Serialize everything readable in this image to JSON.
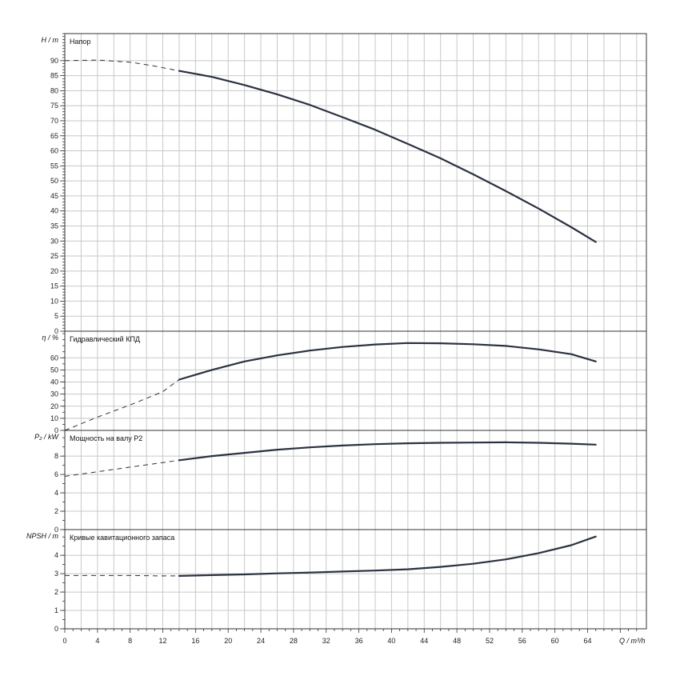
{
  "chart_data": {
    "type": "line",
    "x_axis": {
      "label": "Q / m³/h",
      "min": 0,
      "max": 71.2,
      "ticks": [
        0,
        4,
        8,
        12,
        16,
        20,
        24,
        28,
        32,
        36,
        40,
        44,
        48,
        52,
        56,
        60,
        64
      ],
      "tick_labels": [
        "0",
        "4",
        "8",
        "12",
        "16",
        "20",
        "24",
        "28",
        "32",
        "36",
        "40",
        "44",
        "48",
        "52",
        "56",
        "60",
        "64"
      ]
    },
    "grid": true,
    "panels": [
      {
        "title": "Напор",
        "y_label": "H / m",
        "y_min": 0,
        "y_max": 99,
        "ticks": [
          0,
          5,
          10,
          15,
          20,
          25,
          30,
          35,
          40,
          45,
          50,
          55,
          60,
          65,
          70,
          75,
          80,
          85,
          90
        ],
        "tick_labels": [
          "0",
          "5",
          "10",
          "15",
          "20",
          "25",
          "30",
          "35",
          "40",
          "45",
          "50",
          "55",
          "60",
          "65",
          "70",
          "75",
          "80",
          "85",
          "90"
        ],
        "minor_step": 1,
        "dashed_points": [
          [
            0,
            90
          ],
          [
            4,
            90.2
          ],
          [
            8,
            89.5
          ],
          [
            11,
            88.2
          ],
          [
            14,
            86.6
          ]
        ],
        "solid_points": [
          [
            14,
            86.6
          ],
          [
            18,
            84.6
          ],
          [
            22,
            81.9
          ],
          [
            26,
            78.8
          ],
          [
            30,
            75.3
          ],
          [
            34,
            71.2
          ],
          [
            38,
            67.0
          ],
          [
            42,
            62.3
          ],
          [
            46,
            57.5
          ],
          [
            50,
            52.2
          ],
          [
            54,
            46.6
          ],
          [
            58,
            40.8
          ],
          [
            62,
            34.6
          ],
          [
            65,
            29.7
          ]
        ]
      },
      {
        "title": "Гидравлический КПД",
        "y_label": "η / %",
        "y_min": 0,
        "y_max": 82,
        "ticks": [
          0,
          10,
          20,
          30,
          40,
          50,
          60
        ],
        "tick_labels": [
          "0",
          "10",
          "20",
          "30",
          "40",
          "50",
          "60"
        ],
        "minor_step": 5,
        "dashed_points": [
          [
            0,
            0
          ],
          [
            4,
            11
          ],
          [
            8,
            21
          ],
          [
            12,
            32
          ],
          [
            14,
            42
          ]
        ],
        "solid_points": [
          [
            14,
            42
          ],
          [
            18,
            50
          ],
          [
            22,
            57
          ],
          [
            26,
            62
          ],
          [
            30,
            66
          ],
          [
            34,
            69
          ],
          [
            38,
            71
          ],
          [
            42,
            72.2
          ],
          [
            46,
            72
          ],
          [
            50,
            71.2
          ],
          [
            54,
            69.8
          ],
          [
            58,
            67
          ],
          [
            62,
            63
          ],
          [
            65,
            57
          ]
        ]
      },
      {
        "title": "Мощность на валу P2",
        "y_label": "P₂ / kW",
        "y_min": 0,
        "y_max": 10.8,
        "ticks": [
          0,
          2,
          4,
          6,
          8
        ],
        "tick_labels": [
          "0",
          "2",
          "4",
          "6",
          "8"
        ],
        "minor_step": 1,
        "dashed_points": [
          [
            0,
            5.8
          ],
          [
            4,
            6.3
          ],
          [
            8,
            6.8
          ],
          [
            12,
            7.3
          ],
          [
            14,
            7.55
          ]
        ],
        "solid_points": [
          [
            14,
            7.55
          ],
          [
            18,
            8.0
          ],
          [
            22,
            8.35
          ],
          [
            26,
            8.7
          ],
          [
            30,
            8.95
          ],
          [
            34,
            9.15
          ],
          [
            38,
            9.3
          ],
          [
            42,
            9.4
          ],
          [
            46,
            9.45
          ],
          [
            50,
            9.48
          ],
          [
            54,
            9.5
          ],
          [
            58,
            9.45
          ],
          [
            62,
            9.35
          ],
          [
            65,
            9.25
          ]
        ]
      },
      {
        "title": "Кривые кавитационного запаса",
        "y_label": "NPSH / m",
        "y_min": 0,
        "y_max": 5.4,
        "ticks": [
          0,
          1,
          2,
          3,
          4
        ],
        "tick_labels": [
          "0",
          "1",
          "2",
          "3",
          "4"
        ],
        "minor_step": 0.5,
        "dashed_points": [
          [
            0,
            2.9
          ],
          [
            4,
            2.9
          ],
          [
            8,
            2.9
          ],
          [
            12,
            2.88
          ],
          [
            14,
            2.88
          ]
        ],
        "solid_points": [
          [
            14,
            2.88
          ],
          [
            18,
            2.92
          ],
          [
            22,
            2.96
          ],
          [
            26,
            3.02
          ],
          [
            30,
            3.06
          ],
          [
            34,
            3.12
          ],
          [
            38,
            3.17
          ],
          [
            42,
            3.24
          ],
          [
            46,
            3.37
          ],
          [
            50,
            3.54
          ],
          [
            54,
            3.78
          ],
          [
            58,
            4.12
          ],
          [
            62,
            4.55
          ],
          [
            65,
            5.02
          ]
        ]
      }
    ]
  }
}
